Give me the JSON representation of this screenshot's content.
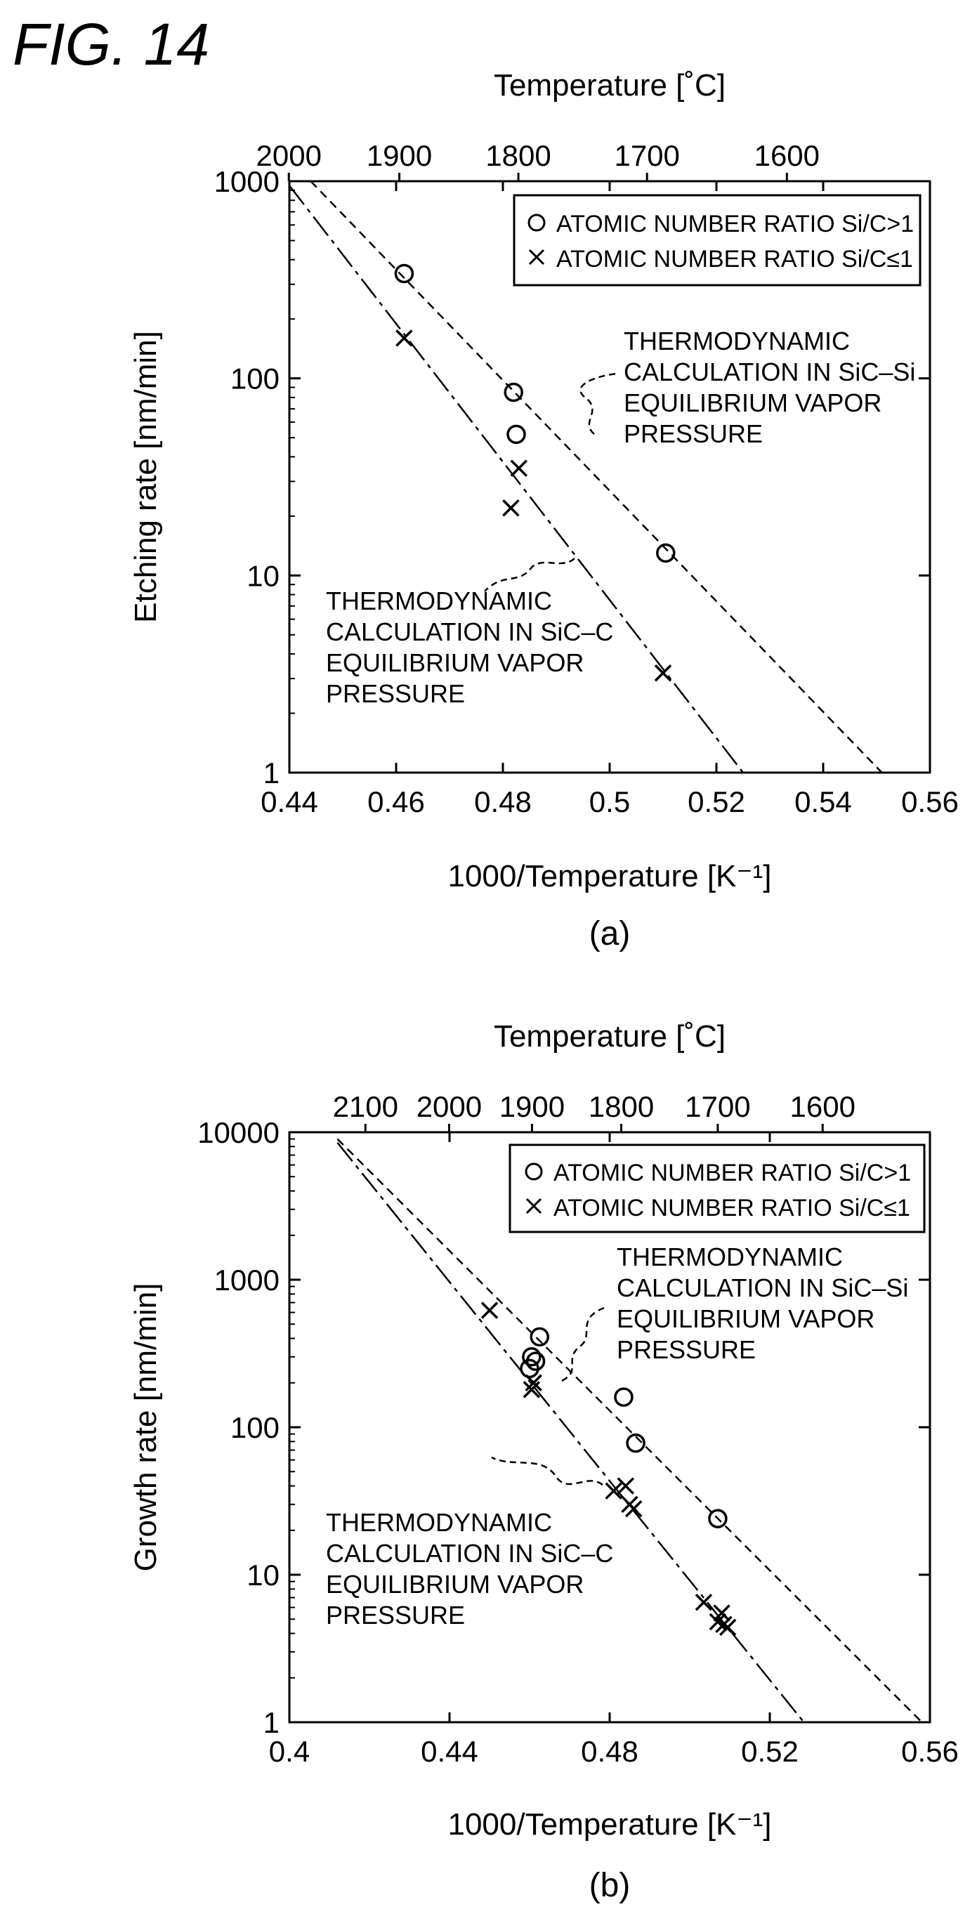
{
  "figure_title": "FIG. 14",
  "chart_data": [
    {
      "type": "scatter",
      "panel_label": "(a)",
      "xlabel": "1000/Temperature [K⁻¹]",
      "ylabel": "Etching rate [nm/min]",
      "top_axis_label": "Temperature [˚C]",
      "yscale": "log",
      "xlim": [
        0.44,
        0.56
      ],
      "ylim": [
        1,
        1000
      ],
      "x_ticks": [
        "0.44",
        "0.46",
        "0.48",
        "0.5",
        "0.52",
        "0.54",
        "0.56"
      ],
      "x_tick_values": [
        0.44,
        0.46,
        0.48,
        0.5,
        0.52,
        0.54,
        0.56
      ],
      "y_ticks": [
        "1",
        "10",
        "100",
        "1000"
      ],
      "y_tick_values": [
        1,
        10,
        100,
        1000
      ],
      "top_ticks": [
        {
          "label": "2000",
          "x": 0.4399
        },
        {
          "label": "1900",
          "x": 0.4606
        },
        {
          "label": "1800",
          "x": 0.4829
        },
        {
          "label": "1700",
          "x": 0.507
        },
        {
          "label": "1600",
          "x": 0.5332
        }
      ],
      "legend": {
        "position": "top-right",
        "entries": [
          {
            "marker": "circle",
            "label": "ATOMIC NUMBER RATIO Si/C>1"
          },
          {
            "marker": "cross",
            "label": "ATOMIC NUMBER RATIO Si/C≤1"
          }
        ]
      },
      "series": [
        {
          "name": "ATOMIC NUMBER RATIO Si/C>1",
          "marker": "circle",
          "points": [
            [
              0.4615,
              340
            ],
            [
              0.482,
              85
            ],
            [
              0.4825,
              52
            ],
            [
              0.5105,
              13
            ]
          ]
        },
        {
          "name": "ATOMIC NUMBER RATIO Si/C≤1",
          "marker": "cross",
          "points": [
            [
              0.4615,
              160
            ],
            [
              0.483,
              35
            ],
            [
              0.4815,
              22
            ],
            [
              0.51,
              3.2
            ]
          ]
        }
      ],
      "lines": [
        {
          "name": "THERMODYNAMIC CALCULATION IN SiC-Si EQUILIBRIUM VAPOR PRESSURE",
          "style": "short-dash",
          "points": [
            [
              0.444,
              1000
            ],
            [
              0.551,
              1
            ]
          ]
        },
        {
          "name": "THERMODYNAMIC CALCULATION IN SiC-C EQUILIBRIUM VAPOR PRESSURE",
          "style": "long-dash",
          "points": [
            [
              0.44,
              950
            ],
            [
              0.525,
              1
            ]
          ]
        }
      ],
      "annotations": [
        {
          "lines": [
            "THERMODYNAMIC",
            "CALCULATION IN SiC–Si",
            "EQUILIBRIUM VAPOR",
            "PRESSURE"
          ]
        },
        {
          "lines": [
            "THERMODYNAMIC",
            "CALCULATION IN SiC–C",
            "EQUILIBRIUM VAPOR",
            "PRESSURE"
          ]
        }
      ]
    },
    {
      "type": "scatter",
      "panel_label": "(b)",
      "xlabel": "1000/Temperature [K⁻¹]",
      "ylabel": "Growth rate [nm/min]",
      "top_axis_label": "Temperature [˚C]",
      "yscale": "log",
      "xlim": [
        0.4,
        0.56
      ],
      "ylim": [
        1,
        10000
      ],
      "x_ticks": [
        "0.4",
        "0.44",
        "0.48",
        "0.52",
        "0.56"
      ],
      "x_tick_values": [
        0.4,
        0.44,
        0.48,
        0.52,
        0.56
      ],
      "y_ticks": [
        "1",
        "10",
        "100",
        "1000",
        "10000"
      ],
      "y_tick_values": [
        1,
        10,
        100,
        1000,
        10000
      ],
      "top_ticks": [
        {
          "label": "2100",
          "x": 0.419
        },
        {
          "label": "2000",
          "x": 0.4399
        },
        {
          "label": "1900",
          "x": 0.4606
        },
        {
          "label": "1800",
          "x": 0.4829
        },
        {
          "label": "1700",
          "x": 0.507
        },
        {
          "label": "1600",
          "x": 0.5332
        }
      ],
      "legend": {
        "position": "top-right",
        "entries": [
          {
            "marker": "circle",
            "label": "ATOMIC NUMBER RATIO Si/C>1"
          },
          {
            "marker": "cross",
            "label": "ATOMIC NUMBER RATIO Si/C≤1"
          }
        ]
      },
      "series": [
        {
          "name": "ATOMIC NUMBER RATIO Si/C>1",
          "marker": "circle",
          "points": [
            [
              0.4625,
              410
            ],
            [
              0.4605,
              300
            ],
            [
              0.4615,
              280
            ],
            [
              0.46,
              250
            ],
            [
              0.4835,
              160
            ],
            [
              0.4865,
              78
            ],
            [
              0.507,
              24
            ]
          ]
        },
        {
          "name": "ATOMIC NUMBER RATIO Si/C≤1",
          "marker": "cross",
          "points": [
            [
              0.45,
              620
            ],
            [
              0.461,
              200
            ],
            [
              0.4605,
              180
            ],
            [
              0.481,
              37
            ],
            [
              0.484,
              40
            ],
            [
              0.485,
              30
            ],
            [
              0.486,
              28
            ],
            [
              0.5035,
              6.5
            ],
            [
              0.508,
              5.5
            ],
            [
              0.507,
              4.8
            ],
            [
              0.5095,
              4.4
            ],
            [
              0.5085,
              4.6
            ]
          ]
        }
      ],
      "lines": [
        {
          "name": "THERMODYNAMIC CALCULATION IN SiC-Si EQUILIBRIUM VAPOR PRESSURE",
          "style": "short-dash",
          "points": [
            [
              0.412,
              9000
            ],
            [
              0.558,
              1
            ]
          ]
        },
        {
          "name": "THERMODYNAMIC CALCULATION IN SiC-C EQUILIBRIUM VAPOR PRESSURE",
          "style": "long-dash",
          "points": [
            [
              0.412,
              8500
            ],
            [
              0.5285,
              1
            ]
          ]
        }
      ],
      "annotations": [
        {
          "lines": [
            "THERMODYNAMIC",
            "CALCULATION IN SiC–Si",
            "EQUILIBRIUM VAPOR",
            "PRESSURE"
          ]
        },
        {
          "lines": [
            "THERMODYNAMIC",
            "CALCULATION IN SiC–C",
            "EQUILIBRIUM VAPOR",
            "PRESSURE"
          ]
        }
      ]
    }
  ]
}
